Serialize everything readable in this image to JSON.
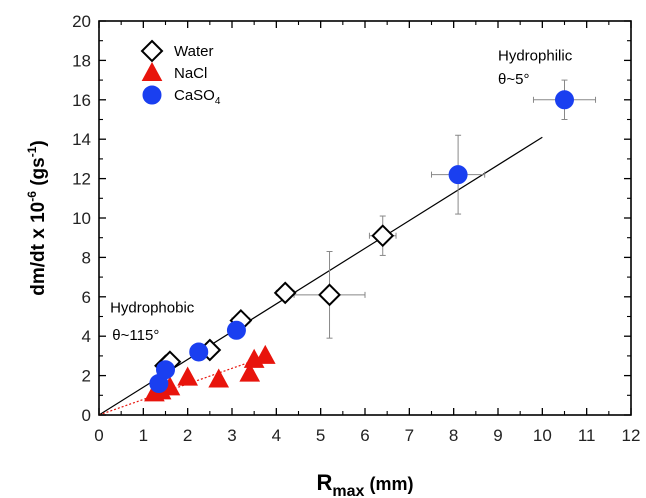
{
  "chart_data": {
    "type": "scatter",
    "xlabel": {
      "main": "R",
      "sub": "max",
      "unit": " (mm)"
    },
    "ylabel": {
      "main": "dm/dt x 10",
      "exp": "-6",
      "unit": " (gs",
      "unit_exp": "-1",
      "close": ")"
    },
    "xlim": [
      0,
      12
    ],
    "ylim": [
      0,
      20
    ],
    "x_ticks": [
      0,
      1,
      2,
      3,
      4,
      5,
      6,
      7,
      8,
      9,
      10,
      11,
      12
    ],
    "y_ticks": [
      0,
      2,
      4,
      6,
      8,
      10,
      12,
      14,
      16,
      18,
      20
    ],
    "grid": false,
    "legend_position": "top-left",
    "series": [
      {
        "name": "Water",
        "marker": "diamond-open",
        "color": "#000000",
        "points": [
          {
            "x": 1.5,
            "y": 2.5,
            "xerr": 0.1,
            "yerr": 0.2
          },
          {
            "x": 1.6,
            "y": 2.7,
            "xerr": 0.1,
            "yerr": 0.2
          },
          {
            "x": 2.5,
            "y": 3.3,
            "xerr": 0.15,
            "yerr": 0.3
          },
          {
            "x": 3.2,
            "y": 4.8,
            "xerr": 0.2,
            "yerr": 0.3
          },
          {
            "x": 4.2,
            "y": 6.2,
            "xerr": 0.2,
            "yerr": 0.3
          },
          {
            "x": 5.2,
            "y": 6.1,
            "xerr": 0.8,
            "yerr": 2.2
          },
          {
            "x": 6.4,
            "y": 9.1,
            "xerr": 0.3,
            "yerr": 1.0
          }
        ]
      },
      {
        "name": "NaCl",
        "marker": "triangle",
        "color": "#e8140c",
        "points": [
          {
            "x": 1.25,
            "y": 1.1
          },
          {
            "x": 1.4,
            "y": 1.2
          },
          {
            "x": 1.6,
            "y": 1.4
          },
          {
            "x": 2.0,
            "y": 1.9
          },
          {
            "x": 2.7,
            "y": 1.8
          },
          {
            "x": 3.4,
            "y": 2.1
          },
          {
            "x": 3.5,
            "y": 2.8
          },
          {
            "x": 3.75,
            "y": 3.0
          }
        ]
      },
      {
        "name": "CaSO",
        "name_sub": "4",
        "marker": "circle",
        "color": "#1a3ff0",
        "points": [
          {
            "x": 1.35,
            "y": 1.6,
            "xerr": 0.05,
            "yerr": 0.2
          },
          {
            "x": 1.5,
            "y": 2.3,
            "xerr": 0.05,
            "yerr": 0.2
          },
          {
            "x": 2.25,
            "y": 3.2,
            "xerr": 0.1,
            "yerr": 0.2
          },
          {
            "x": 3.1,
            "y": 4.3,
            "xerr": 0.1,
            "yerr": 0.3
          },
          {
            "x": 8.1,
            "y": 12.2,
            "xerr": 0.6,
            "yerr": 2.0
          },
          {
            "x": 10.5,
            "y": 16.0,
            "xerr": 0.7,
            "yerr": 1.0
          }
        ]
      }
    ],
    "fit_lines": [
      {
        "color": "#000000",
        "from": [
          0,
          0
        ],
        "to": [
          10.0,
          14.1
        ]
      },
      {
        "color": "#e8140c",
        "dashed": true,
        "from": [
          0,
          0
        ],
        "to": [
          3.8,
          3.0
        ]
      }
    ],
    "annotations": [
      {
        "text": "Hydrophilic",
        "x": 9.0,
        "y": 18.0
      },
      {
        "text": "θ~5°",
        "x": 9.0,
        "y": 16.8
      },
      {
        "text": "Hydrophobic",
        "x": 0.25,
        "y": 5.2
      },
      {
        "text": "θ~115°",
        "x": 0.3,
        "y": 3.8
      }
    ]
  }
}
